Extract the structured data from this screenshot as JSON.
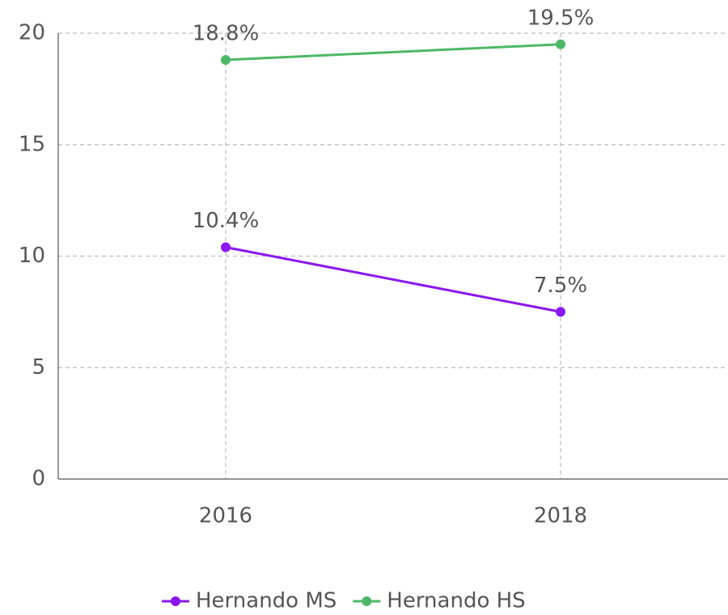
{
  "chart_data": {
    "type": "line",
    "x": [
      2016,
      2018
    ],
    "xlim": [
      2015,
      2019
    ],
    "xticks": [
      2016,
      2018
    ],
    "ylim": [
      0,
      20
    ],
    "yticks": [
      0,
      5,
      10,
      15,
      20
    ],
    "grid": true,
    "legend": "bottom",
    "series": [
      {
        "name": "Hernando MS",
        "color": "#8a17f0",
        "values": [
          10.4,
          7.5
        ],
        "value_labels": [
          "10.4%",
          "7.5%"
        ]
      },
      {
        "name": "Hernando HS",
        "color": "#4cb866",
        "values": [
          18.8,
          19.5
        ],
        "value_labels": [
          "18.8%",
          "19.5%"
        ]
      }
    ]
  }
}
